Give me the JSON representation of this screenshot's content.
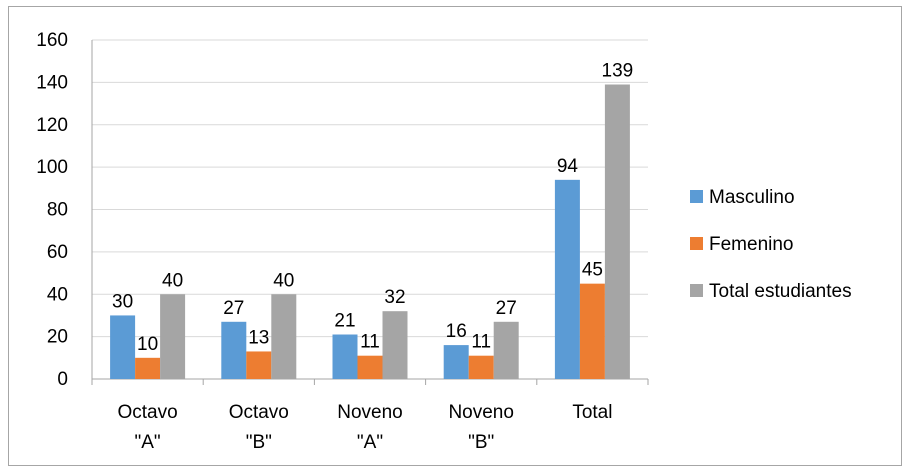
{
  "chart_data": {
    "type": "bar",
    "categories": [
      [
        "Octavo",
        "\"A\""
      ],
      [
        "Octavo",
        "\"B\""
      ],
      [
        "Noveno",
        "\"A\""
      ],
      [
        "Noveno",
        "\"B\""
      ],
      [
        "Total"
      ]
    ],
    "series": [
      {
        "name": "Masculino",
        "values": [
          30,
          27,
          21,
          16,
          94
        ],
        "color": "#5b9bd5"
      },
      {
        "name": "Femenino",
        "values": [
          10,
          13,
          11,
          11,
          45
        ],
        "color": "#ed7d31"
      },
      {
        "name": "Total estudiantes",
        "values": [
          40,
          40,
          32,
          27,
          139
        ],
        "color": "#a5a5a5"
      }
    ],
    "ylim": [
      0,
      160
    ],
    "yticks": [
      0,
      20,
      40,
      60,
      80,
      100,
      120,
      140,
      160
    ],
    "grid": true,
    "legend": "right",
    "data_labels": true
  }
}
